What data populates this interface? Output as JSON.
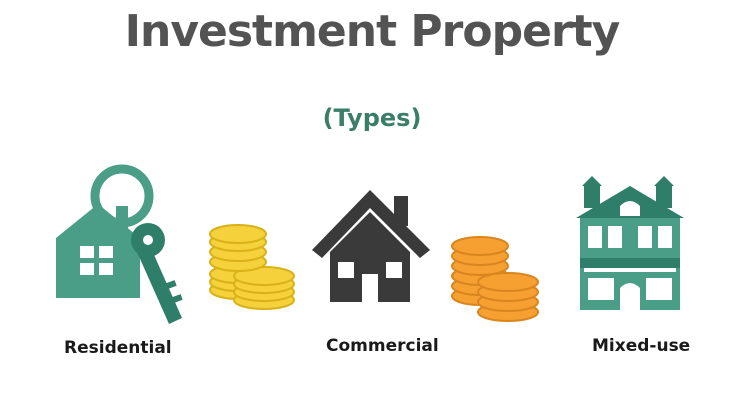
{
  "title": "Investment Property",
  "subtitle": "(Types)",
  "types": [
    {
      "label": "Residential",
      "icon": "house-with-key-icon"
    },
    {
      "label": "Commercial",
      "icon": "commercial-house-icon"
    },
    {
      "label": "Mixed-use",
      "icon": "mixed-use-building-icon"
    }
  ],
  "coins": [
    {
      "icon": "yellow-coin-stack-icon"
    },
    {
      "icon": "orange-coin-stack-icon"
    }
  ],
  "colors": {
    "title": "#535353",
    "subtitle": "#3a7d68",
    "teal": "#4a9d86",
    "teal_dark": "#2f7e6a",
    "charcoal": "#3a3a3a",
    "yellow": "#f5d23c",
    "orange": "#f6a032"
  }
}
